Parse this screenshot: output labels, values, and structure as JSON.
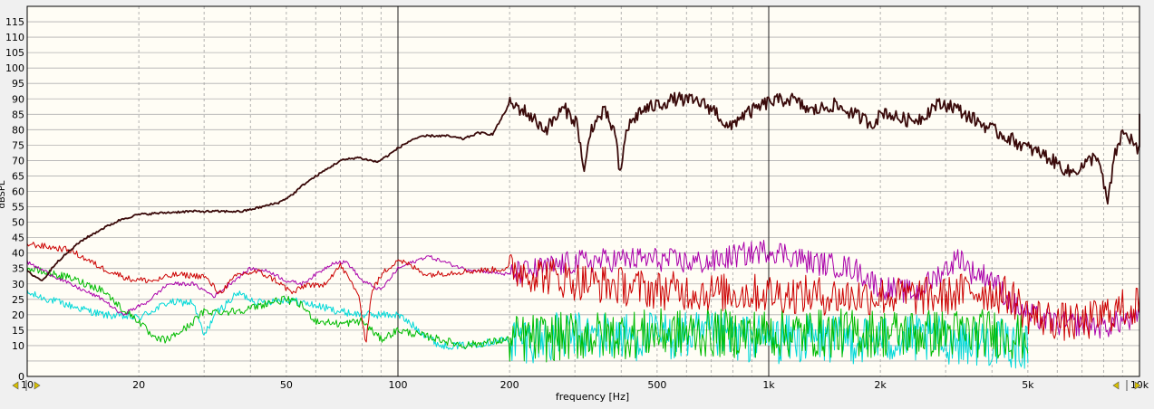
{
  "chart_data": {
    "type": "line",
    "xlabel": "frequency [Hz]",
    "ylabel": "dBSPL",
    "xscale": "log",
    "xlim": [
      10,
      10000
    ],
    "ylim": [
      0,
      120
    ],
    "grid": true,
    "legend": "none",
    "x_ticks": [
      {
        "value": 10,
        "label": "10"
      },
      {
        "value": 20,
        "label": "20"
      },
      {
        "value": 50,
        "label": "50"
      },
      {
        "value": 100,
        "label": "100"
      },
      {
        "value": 200,
        "label": "200"
      },
      {
        "value": 500,
        "label": "500"
      },
      {
        "value": 1000,
        "label": "1k"
      },
      {
        "value": 2000,
        "label": "2k"
      },
      {
        "value": 5000,
        "label": "5k"
      },
      {
        "value": 10000,
        "label": "10k"
      }
    ],
    "y_ticks": [
      0,
      10,
      15,
      20,
      25,
      30,
      35,
      40,
      45,
      50,
      55,
      60,
      65,
      70,
      75,
      80,
      85,
      90,
      95,
      100,
      105,
      110,
      115
    ],
    "series": [
      {
        "color": "#3a0a0a",
        "width": 1.8,
        "noise": 1.4,
        "points": [
          [
            10,
            34
          ],
          [
            11,
            31
          ],
          [
            12,
            37
          ],
          [
            14,
            44
          ],
          [
            16,
            48
          ],
          [
            18,
            51
          ],
          [
            20,
            52.5
          ],
          [
            23,
            53
          ],
          [
            27,
            53.5
          ],
          [
            32,
            53.5
          ],
          [
            38,
            53.5
          ],
          [
            43,
            55
          ],
          [
            48,
            56.5
          ],
          [
            52,
            59
          ],
          [
            56,
            62.5
          ],
          [
            62,
            66
          ],
          [
            70,
            70
          ],
          [
            78,
            71
          ],
          [
            88,
            69.5
          ],
          [
            95,
            72
          ],
          [
            100,
            74
          ],
          [
            110,
            77
          ],
          [
            120,
            78
          ],
          [
            135,
            78
          ],
          [
            150,
            77
          ],
          [
            165,
            79
          ],
          [
            180,
            78.5
          ],
          [
            200,
            88.5
          ],
          [
            220,
            86
          ],
          [
            250,
            80
          ],
          [
            280,
            87
          ],
          [
            305,
            82
          ],
          [
            318,
            65
          ],
          [
            330,
            80
          ],
          [
            360,
            86
          ],
          [
            385,
            79
          ],
          [
            398,
            64
          ],
          [
            412,
            80
          ],
          [
            450,
            86
          ],
          [
            500,
            88
          ],
          [
            560,
            90
          ],
          [
            650,
            89
          ],
          [
            720,
            86
          ],
          [
            780,
            80
          ],
          [
            830,
            84
          ],
          [
            900,
            86
          ],
          [
            1000,
            89
          ],
          [
            1150,
            90
          ],
          [
            1300,
            86
          ],
          [
            1500,
            88
          ],
          [
            1700,
            85
          ],
          [
            1900,
            82
          ],
          [
            2050,
            86
          ],
          [
            2200,
            84
          ],
          [
            2400,
            83
          ],
          [
            2600,
            84
          ],
          [
            2800,
            88
          ],
          [
            3100,
            88
          ],
          [
            3500,
            84
          ],
          [
            4000,
            80
          ],
          [
            4500,
            77
          ],
          [
            5000,
            74
          ],
          [
            5500,
            72
          ],
          [
            6000,
            69
          ],
          [
            6500,
            66
          ],
          [
            7000,
            68
          ],
          [
            7700,
            72
          ],
          [
            8200,
            56
          ],
          [
            8600,
            72
          ],
          [
            9000,
            79
          ],
          [
            9500,
            77
          ],
          [
            10000,
            72
          ],
          [
            10100,
            83
          ]
        ]
      },
      {
        "color": "#cc0000",
        "width": 1,
        "noise": 4,
        "points": [
          [
            10,
            43
          ],
          [
            13,
            41
          ],
          [
            16,
            35
          ],
          [
            19,
            31.5
          ],
          [
            22,
            31
          ],
          [
            25,
            33
          ],
          [
            30,
            32.5
          ],
          [
            33,
            27
          ],
          [
            37,
            33
          ],
          [
            42,
            34
          ],
          [
            47,
            31
          ],
          [
            52,
            27
          ],
          [
            57,
            30
          ],
          [
            62,
            29
          ],
          [
            70,
            36
          ],
          [
            78,
            27
          ],
          [
            82,
            11
          ],
          [
            85,
            28
          ],
          [
            92,
            34
          ],
          [
            100,
            38
          ],
          [
            120,
            33
          ],
          [
            150,
            34
          ],
          [
            200,
            35
          ],
          [
            300,
            31
          ],
          [
            500,
            28
          ],
          [
            800,
            27
          ],
          [
            1000,
            27
          ],
          [
            1500,
            26
          ],
          [
            2000,
            26
          ],
          [
            3000,
            26
          ],
          [
            3500,
            28
          ],
          [
            4000,
            27
          ],
          [
            4500,
            26
          ],
          [
            5000,
            20
          ],
          [
            6000,
            18
          ],
          [
            7000,
            17
          ],
          [
            8000,
            20
          ],
          [
            9000,
            22
          ],
          [
            10000,
            23
          ],
          [
            10100,
            38
          ]
        ]
      },
      {
        "color": "#aa00aa",
        "width": 1,
        "noise": 2.5,
        "points": [
          [
            10,
            37
          ],
          [
            13,
            30
          ],
          [
            16,
            25
          ],
          [
            18,
            20
          ],
          [
            21,
            24
          ],
          [
            24,
            30
          ],
          [
            28,
            30
          ],
          [
            32,
            26
          ],
          [
            36,
            31
          ],
          [
            40,
            35
          ],
          [
            45,
            34
          ],
          [
            50,
            31
          ],
          [
            55,
            30
          ],
          [
            60,
            33
          ],
          [
            67,
            37
          ],
          [
            73,
            37
          ],
          [
            80,
            31
          ],
          [
            90,
            28
          ],
          [
            100,
            35
          ],
          [
            120,
            39
          ],
          [
            150,
            35
          ],
          [
            200,
            33
          ],
          [
            300,
            37
          ],
          [
            400,
            38
          ],
          [
            500,
            38
          ],
          [
            600,
            37
          ],
          [
            700,
            37
          ],
          [
            800,
            39
          ],
          [
            900,
            40
          ],
          [
            1000,
            41
          ],
          [
            1100,
            40
          ],
          [
            1300,
            37
          ],
          [
            1500,
            36
          ],
          [
            1700,
            35
          ],
          [
            2000,
            29
          ],
          [
            2500,
            27
          ],
          [
            3000,
            35
          ],
          [
            3300,
            39
          ],
          [
            3500,
            34
          ],
          [
            4000,
            32
          ],
          [
            4500,
            24
          ],
          [
            5000,
            20
          ],
          [
            6000,
            17
          ],
          [
            7000,
            17
          ],
          [
            8000,
            16
          ],
          [
            9000,
            18
          ],
          [
            10000,
            18
          ]
        ]
      },
      {
        "color": "#00bb00",
        "width": 1,
        "noise": 5,
        "points": [
          [
            10,
            35
          ],
          [
            13,
            32
          ],
          [
            16,
            28
          ],
          [
            18,
            22
          ],
          [
            20,
            18
          ],
          [
            22,
            12
          ],
          [
            24,
            12
          ],
          [
            27,
            16
          ],
          [
            30,
            21
          ],
          [
            35,
            21
          ],
          [
            40,
            22
          ],
          [
            45,
            24
          ],
          [
            50,
            25
          ],
          [
            55,
            23
          ],
          [
            60,
            18
          ],
          [
            70,
            17
          ],
          [
            80,
            18
          ],
          [
            90,
            12
          ],
          [
            100,
            15
          ],
          [
            130,
            12
          ],
          [
            150,
            10
          ],
          [
            200,
            12
          ],
          [
            300,
            13
          ],
          [
            500,
            14
          ],
          [
            700,
            14
          ],
          [
            1000,
            14
          ],
          [
            1500,
            14
          ],
          [
            2000,
            14
          ],
          [
            3000,
            14
          ],
          [
            4000,
            14
          ],
          [
            5000,
            13
          ]
        ]
      },
      {
        "color": "#00d8d8",
        "width": 1,
        "noise": 5,
        "points": [
          [
            10,
            27
          ],
          [
            13,
            23
          ],
          [
            16,
            20
          ],
          [
            20,
            19
          ],
          [
            24,
            24
          ],
          [
            28,
            24
          ],
          [
            30,
            13
          ],
          [
            32,
            20
          ],
          [
            37,
            27
          ],
          [
            42,
            24
          ],
          [
            50,
            25
          ],
          [
            60,
            23
          ],
          [
            70,
            21
          ],
          [
            80,
            20
          ],
          [
            90,
            20
          ],
          [
            100,
            20
          ],
          [
            130,
            10
          ],
          [
            150,
            10
          ],
          [
            200,
            12
          ],
          [
            300,
            13
          ],
          [
            500,
            13
          ],
          [
            700,
            13
          ],
          [
            1000,
            12
          ],
          [
            1500,
            12
          ],
          [
            2000,
            12
          ],
          [
            3000,
            12
          ],
          [
            4000,
            11
          ],
          [
            5000,
            10
          ]
        ]
      }
    ]
  }
}
